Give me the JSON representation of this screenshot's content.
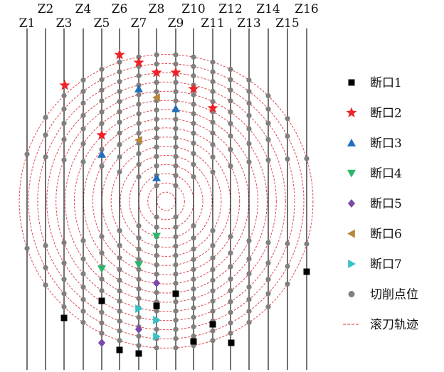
{
  "column_labels": [
    "Z1",
    "Z2",
    "Z3",
    "Z4",
    "Z5",
    "Z6",
    "Z7",
    "Z8",
    "Z9",
    "Z10",
    "Z11",
    "Z12",
    "Z13",
    "Z14",
    "Z15",
    "Z16"
  ],
  "rings": 16,
  "ring_points": [
    [],
    [],
    [],
    [
      [
        220,
        275
      ],
      [
        247,
        275
      ],
      [
        220,
        310
      ],
      [
        247,
        310
      ]
    ],
    [
      [
        220,
        240
      ],
      [
        247,
        240
      ],
      [
        195,
        260
      ],
      [
        272,
        260
      ],
      [
        195,
        325
      ],
      [
        272,
        325
      ],
      [
        220,
        345
      ],
      [
        247,
        345
      ]
    ],
    [
      [
        220,
        205
      ],
      [
        247,
        205
      ],
      [
        195,
        215
      ],
      [
        272,
        215
      ],
      [
        168,
        245
      ],
      [
        299,
        245
      ],
      [
        168,
        340
      ],
      [
        299,
        340
      ],
      [
        195,
        370
      ],
      [
        272,
        370
      ],
      [
        220,
        380
      ],
      [
        247,
        380
      ]
    ],
    [
      [
        220,
        170
      ],
      [
        247,
        170
      ],
      [
        195,
        180
      ],
      [
        272,
        180
      ],
      [
        168,
        200
      ],
      [
        299,
        200
      ],
      [
        143,
        235
      ],
      [
        324,
        235
      ],
      [
        143,
        350
      ],
      [
        324,
        350
      ],
      [
        168,
        385
      ],
      [
        299,
        385
      ],
      [
        195,
        405
      ],
      [
        272,
        405
      ],
      [
        220,
        415
      ],
      [
        247,
        415
      ]
    ],
    [
      [
        220,
        137
      ],
      [
        247,
        137
      ],
      [
        195,
        145
      ],
      [
        272,
        145
      ],
      [
        168,
        160
      ],
      [
        299,
        160
      ],
      [
        143,
        190
      ],
      [
        324,
        190
      ],
      [
        117,
        235
      ],
      [
        350,
        235
      ],
      [
        117,
        350
      ],
      [
        350,
        350
      ],
      [
        143,
        395
      ],
      [
        324,
        395
      ],
      [
        168,
        425
      ],
      [
        299,
        425
      ],
      [
        195,
        440
      ],
      [
        272,
        440
      ],
      [
        220,
        448
      ],
      [
        247,
        448
      ]
    ],
    [
      [
        220,
        100
      ],
      [
        247,
        100
      ],
      [
        195,
        110
      ],
      [
        272,
        110
      ],
      [
        168,
        125
      ],
      [
        299,
        125
      ],
      [
        143,
        145
      ],
      [
        324,
        145
      ],
      [
        117,
        180
      ],
      [
        350,
        180
      ],
      [
        90,
        240
      ],
      [
        377,
        240
      ],
      [
        90,
        345
      ],
      [
        377,
        345
      ],
      [
        117,
        405
      ],
      [
        350,
        405
      ],
      [
        143,
        440
      ],
      [
        324,
        440
      ],
      [
        168,
        460
      ],
      [
        299,
        460
      ],
      [
        195,
        475
      ],
      [
        272,
        475
      ],
      [
        220,
        485
      ],
      [
        247,
        485
      ]
    ]
  ],
  "markers": {
    "break1": [
      [
        143,
        423
      ],
      [
        220,
        430
      ],
      [
        247,
        413
      ],
      [
        90,
        447
      ],
      [
        168,
        492
      ],
      [
        195,
        497
      ],
      [
        272,
        480
      ],
      [
        299,
        456
      ],
      [
        325,
        482
      ],
      [
        431,
        382
      ]
    ],
    "break2": [
      [
        91,
        120
      ],
      [
        143,
        190
      ],
      [
        168,
        77
      ],
      [
        195,
        88
      ],
      [
        220,
        102
      ],
      [
        247,
        102
      ],
      [
        272,
        125
      ],
      [
        299,
        152
      ]
    ],
    "break3": [
      [
        143,
        217
      ],
      [
        195,
        125
      ],
      [
        220,
        250
      ],
      [
        247,
        153
      ]
    ],
    "break4": [
      [
        143,
        378
      ],
      [
        195,
        372
      ],
      [
        220,
        332
      ]
    ],
    "break5": [
      [
        143,
        482
      ],
      [
        195,
        463
      ],
      [
        220,
        398
      ]
    ],
    "break6": [
      [
        195,
        197
      ],
      [
        220,
        137
      ]
    ],
    "break7": [
      [
        195,
        434
      ],
      [
        220,
        450
      ],
      [
        220,
        473
      ]
    ]
  },
  "legend": [
    {
      "key": "break1",
      "label": "断口1",
      "shape": "square",
      "color": "#000000"
    },
    {
      "key": "break2",
      "label": "断口2",
      "shape": "star",
      "color": "#ee2228"
    },
    {
      "key": "break3",
      "label": "断口3",
      "shape": "triangle-up",
      "color": "#1f6fbd"
    },
    {
      "key": "break4",
      "label": "断口4",
      "shape": "triangle-down",
      "color": "#2bb56a"
    },
    {
      "key": "break5",
      "label": "断口5",
      "shape": "diamond",
      "color": "#7b4aa8"
    },
    {
      "key": "break6",
      "label": "断口6",
      "shape": "triangle-left",
      "color": "#b8873a"
    },
    {
      "key": "break7",
      "label": "断口7",
      "shape": "triangle-right",
      "color": "#34c3c8"
    },
    {
      "key": "cut",
      "label": "切削点位",
      "shape": "circle",
      "color": "#808080"
    },
    {
      "key": "track",
      "label": "滚刀轨迹",
      "shape": "dash",
      "color": "#e8555a"
    }
  ],
  "colors": {
    "ring": "#e0474c",
    "column_line": "#000000",
    "cut_point": "#808080"
  }
}
